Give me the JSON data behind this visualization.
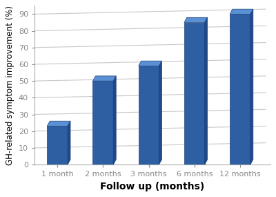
{
  "categories": [
    "1 month",
    "2 months",
    "3 months",
    "6 months",
    "12 months"
  ],
  "values": [
    23,
    50,
    59,
    85,
    90
  ],
  "bar_color_main": "#2E5FA3",
  "bar_color_left": "#4a80c4",
  "bar_color_top": "#5a90d4",
  "xlabel": "Follow up (months)",
  "ylabel": "GH-related symptom improvement (%)",
  "ylim": [
    0,
    95
  ],
  "yticks": [
    0,
    10,
    20,
    30,
    40,
    50,
    60,
    70,
    80,
    90
  ],
  "grid_color": "#c8c8c8",
  "background_color": "#ffffff",
  "xlabel_fontsize": 10,
  "ylabel_fontsize": 8.5,
  "tick_fontsize": 8,
  "bar_width": 0.45
}
